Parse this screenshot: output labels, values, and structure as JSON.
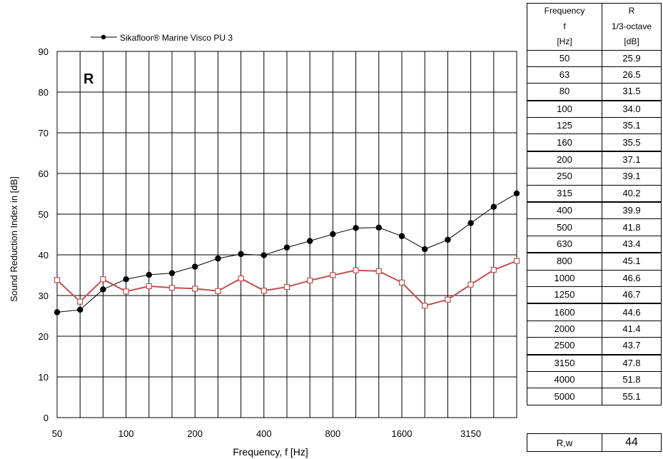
{
  "chart_data": {
    "type": "line",
    "xlabel": "Frequency,  f [Hz]",
    "ylabel": "Sound Reduction Index in    [dB]",
    "corner_label": "R",
    "ylim": [
      0,
      90
    ],
    "yticks": [
      "0",
      "10",
      "20",
      "30",
      "40",
      "50",
      "60",
      "70",
      "80",
      "90"
    ],
    "categories": [
      "50",
      "63",
      "80",
      "100",
      "125",
      "160",
      "200",
      "250",
      "315",
      "400",
      "500",
      "630",
      "800",
      "1000",
      "1250",
      "1600",
      "2000",
      "2500",
      "3150",
      "4000",
      "5000"
    ],
    "xtick_labels": [
      "50",
      "100",
      "200",
      "400",
      "800",
      "1600",
      "3150"
    ],
    "grid": true,
    "legend_position": "top-left",
    "series": [
      {
        "name": "Sikafloor® Marine Visco PU 3",
        "color": "#000000",
        "marker": "filled-circle",
        "values": [
          25.9,
          26.5,
          31.5,
          34.0,
          35.1,
          35.5,
          37.1,
          39.1,
          40.2,
          39.9,
          41.8,
          43.4,
          45.1,
          46.6,
          46.7,
          44.6,
          41.4,
          43.7,
          47.8,
          51.8,
          55.1
        ]
      },
      {
        "color": "#c0504d",
        "marker": "open-square",
        "values": [
          33.8,
          28.5,
          34.0,
          31.0,
          32.3,
          31.9,
          31.7,
          31.1,
          34.2,
          31.2,
          32.1,
          33.7,
          35.0,
          36.2,
          36.0,
          33.2,
          27.5,
          29.0,
          32.7,
          36.3,
          38.5
        ]
      }
    ]
  },
  "table": {
    "header": {
      "col1": [
        "Frequency",
        "f",
        "[Hz]"
      ],
      "col2": [
        "R",
        "1/3-octave",
        "[dB]"
      ]
    },
    "rows": [
      {
        "f": "50",
        "r": "25.9"
      },
      {
        "f": "63",
        "r": "26.5"
      },
      {
        "f": "80",
        "r": "31.5"
      },
      {
        "f": "100",
        "r": "34.0"
      },
      {
        "f": "125",
        "r": "35.1"
      },
      {
        "f": "160",
        "r": "35.5"
      },
      {
        "f": "200",
        "r": "37.1"
      },
      {
        "f": "250",
        "r": "39.1"
      },
      {
        "f": "315",
        "r": "40.2"
      },
      {
        "f": "400",
        "r": "39.9"
      },
      {
        "f": "500",
        "r": "41.8"
      },
      {
        "f": "630",
        "r": "43.4"
      },
      {
        "f": "800",
        "r": "45.1"
      },
      {
        "f": "1000",
        "r": "46.6"
      },
      {
        "f": "1250",
        "r": "46.7"
      },
      {
        "f": "1600",
        "r": "44.6"
      },
      {
        "f": "2000",
        "r": "41.4"
      },
      {
        "f": "2500",
        "r": "43.7"
      },
      {
        "f": "3150",
        "r": "47.8"
      },
      {
        "f": "4000",
        "r": "51.8"
      },
      {
        "f": "5000",
        "r": "55.1"
      }
    ],
    "rw_label": "R,w",
    "rw_value": "44"
  }
}
